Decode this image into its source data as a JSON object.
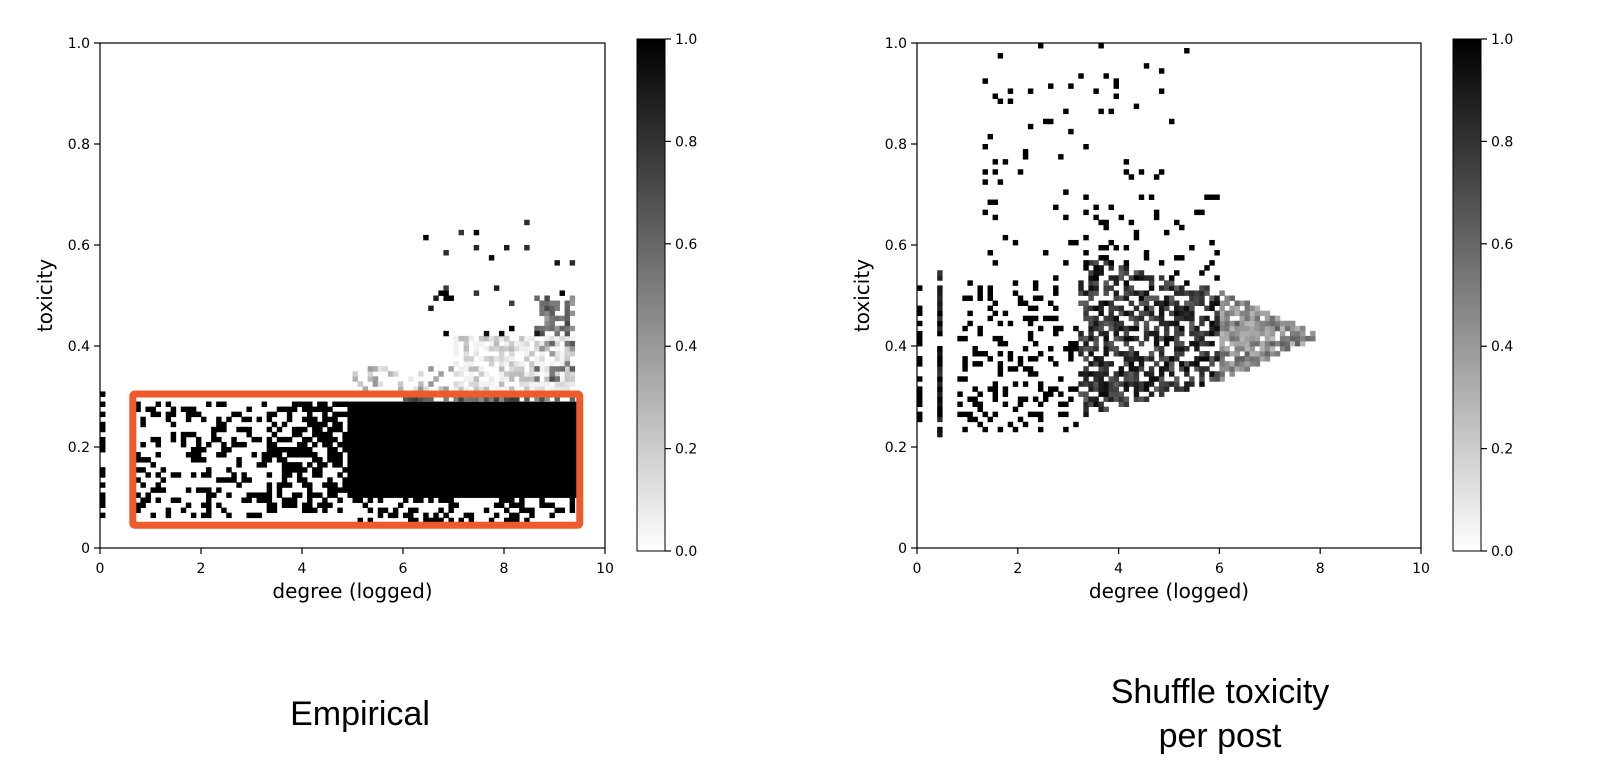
{
  "chart_data": [
    {
      "type": "heatmap",
      "caption": "Empirical",
      "xlabel": "degree (logged)",
      "ylabel": "toxicity",
      "xlim": [
        0,
        10
      ],
      "ylim": [
        0,
        1.0
      ],
      "xticks": [
        "0",
        "2",
        "4",
        "6",
        "8",
        "10"
      ],
      "yticks": [
        "0",
        "0.2",
        "0.4",
        "0.6",
        "0.8",
        "1.0"
      ],
      "colorbar": {
        "min": 0.0,
        "max": 1.0,
        "ticks": [
          "0.0",
          "0.2",
          "0.4",
          "0.6",
          "0.8",
          "1.0"
        ],
        "colormap": "white-to-black"
      },
      "bins": {
        "x_step": 0.1,
        "y_step": 0.01
      },
      "regions": [
        {
          "x": [
            4.9,
            9.5
          ],
          "y": [
            0.1,
            0.29
          ],
          "value": 1.0,
          "density": 1.0
        },
        {
          "x": [
            3.3,
            4.9
          ],
          "y": [
            0.07,
            0.29
          ],
          "value": 1.0,
          "density": 0.55
        },
        {
          "x": [
            0.6,
            3.3
          ],
          "y": [
            0.06,
            0.29
          ],
          "value": 1.0,
          "density": 0.28
        },
        {
          "x": [
            5.0,
            9.4
          ],
          "y": [
            0.05,
            0.1
          ],
          "value": 1.0,
          "density": 0.35
        },
        {
          "x": [
            0.0,
            0.1
          ],
          "y": [
            0.05,
            0.34
          ],
          "value": 1.0,
          "density": 0.45
        },
        {
          "x": [
            6.0,
            9.4
          ],
          "y": [
            0.29,
            0.31
          ],
          "value": 0.6,
          "density": 0.9
        },
        {
          "x": [
            7.0,
            9.4
          ],
          "y": [
            0.31,
            0.42
          ],
          "value": 0.1,
          "density": 0.7
        },
        {
          "x": [
            5.0,
            7.0
          ],
          "y": [
            0.31,
            0.36
          ],
          "value": 0.25,
          "density": 0.3
        },
        {
          "x": [
            8.6,
            9.4
          ],
          "y": [
            0.33,
            0.5
          ],
          "value": 0.55,
          "density": 0.55
        },
        {
          "x": [
            6.4,
            9.4
          ],
          "y": [
            0.42,
            0.65
          ],
          "value": 0.9,
          "density": 0.05
        }
      ],
      "annotation": {
        "type": "rectangle",
        "x": [
          0.65,
          9.5
        ],
        "y": [
          0.045,
          0.305
        ],
        "color": "#ee5a2b"
      }
    },
    {
      "type": "heatmap",
      "caption": [
        "Shuffle toxicity",
        "per post"
      ],
      "xlabel": "degree (logged)",
      "ylabel": "toxicity",
      "xlim": [
        0,
        10
      ],
      "ylim": [
        0,
        1.0
      ],
      "xticks": [
        "0",
        "2",
        "4",
        "6",
        "8",
        "10"
      ],
      "yticks": [
        "0",
        "0.2",
        "0.4",
        "0.6",
        "0.8",
        "1.0"
      ],
      "colorbar": {
        "min": 0.0,
        "max": 1.0,
        "ticks": [
          "0.0",
          "0.2",
          "0.4",
          "0.6",
          "0.8",
          "1.0"
        ],
        "colormap": "white-to-black"
      },
      "bins": {
        "x_step": 0.1,
        "y_step": 0.01
      },
      "regions": [
        {
          "shape": "diamond",
          "center_x": 6.6,
          "center_y": 0.42,
          "x": [
            6.0,
            7.9
          ],
          "half_height": [
            0.09,
            0.005
          ],
          "value": 0.45,
          "density": 0.9
        },
        {
          "shape": "diamond",
          "center_x": 4.6,
          "center_y": 0.42,
          "x": [
            3.2,
            6.0
          ],
          "half_height": [
            0.16,
            0.09
          ],
          "value": 0.8,
          "density": 0.6
        },
        {
          "x": [
            0.8,
            3.2
          ],
          "y": [
            0.23,
            0.53
          ],
          "value": 1.0,
          "density": 0.22
        },
        {
          "x": [
            0.45,
            0.5
          ],
          "y": [
            0.22,
            0.55
          ],
          "value": 0.9,
          "density": 0.9
        },
        {
          "x": [
            0.0,
            0.05
          ],
          "y": [
            0.25,
            0.56
          ],
          "value": 1.0,
          "density": 0.6
        },
        {
          "x": [
            1.3,
            5.4
          ],
          "y": [
            0.53,
            1.0
          ],
          "value": 1.0,
          "density": 0.035
        },
        {
          "x": [
            3.3,
            6.0
          ],
          "y": [
            0.53,
            0.7
          ],
          "value": 1.0,
          "density": 0.1
        }
      ]
    }
  ]
}
